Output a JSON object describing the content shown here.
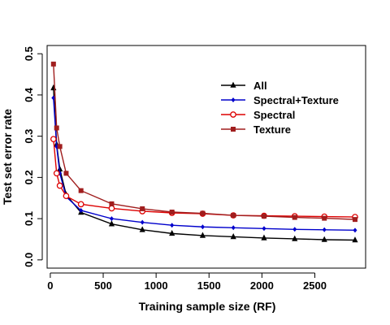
{
  "chart_data": {
    "type": "line",
    "xlabel": "Training sample size (RF)",
    "ylabel": "Test set error rate",
    "xlim": [
      0,
      2880
    ],
    "ylim": [
      0,
      0.5
    ],
    "x_ticks": [
      0,
      500,
      1000,
      1500,
      2000,
      2500
    ],
    "x_tick_labels": [
      "0",
      "500",
      "1000",
      "1500",
      "2000",
      "2500"
    ],
    "y_ticks": [
      0.0,
      0.1,
      0.2,
      0.3,
      0.4,
      0.5
    ],
    "y_tick_labels": [
      "0.0",
      "0.1",
      "0.2",
      "0.3",
      "0.4",
      "0.5"
    ],
    "grid": false,
    "legend_position": "top-right",
    "x": [
      30,
      60,
      90,
      150,
      290,
      580,
      870,
      1150,
      1440,
      1730,
      2020,
      2310,
      2590,
      2880
    ],
    "series": [
      {
        "name": "All",
        "color": "#000000",
        "marker": "triangle",
        "values": [
          0.417,
          0.28,
          0.22,
          0.158,
          0.115,
          0.087,
          0.073,
          0.064,
          0.059,
          0.056,
          0.053,
          0.051,
          0.049,
          0.048
        ]
      },
      {
        "name": "Spectral+Texture",
        "color": "#0000cc",
        "marker": "diamond",
        "values": [
          0.393,
          0.275,
          0.21,
          0.153,
          0.12,
          0.1,
          0.091,
          0.084,
          0.08,
          0.078,
          0.076,
          0.074,
          0.073,
          0.072
        ]
      },
      {
        "name": "Spectral",
        "color": "#dd0000",
        "marker": "open-circle",
        "values": [
          0.293,
          0.21,
          0.18,
          0.155,
          0.135,
          0.125,
          0.118,
          0.114,
          0.112,
          0.108,
          0.107,
          0.106,
          0.105,
          0.104
        ]
      },
      {
        "name": "Texture",
        "color": "#a01e1e",
        "marker": "square",
        "values": [
          0.475,
          0.32,
          0.275,
          0.21,
          0.168,
          0.136,
          0.124,
          0.116,
          0.113,
          0.108,
          0.106,
          0.103,
          0.101,
          0.098
        ]
      }
    ]
  }
}
